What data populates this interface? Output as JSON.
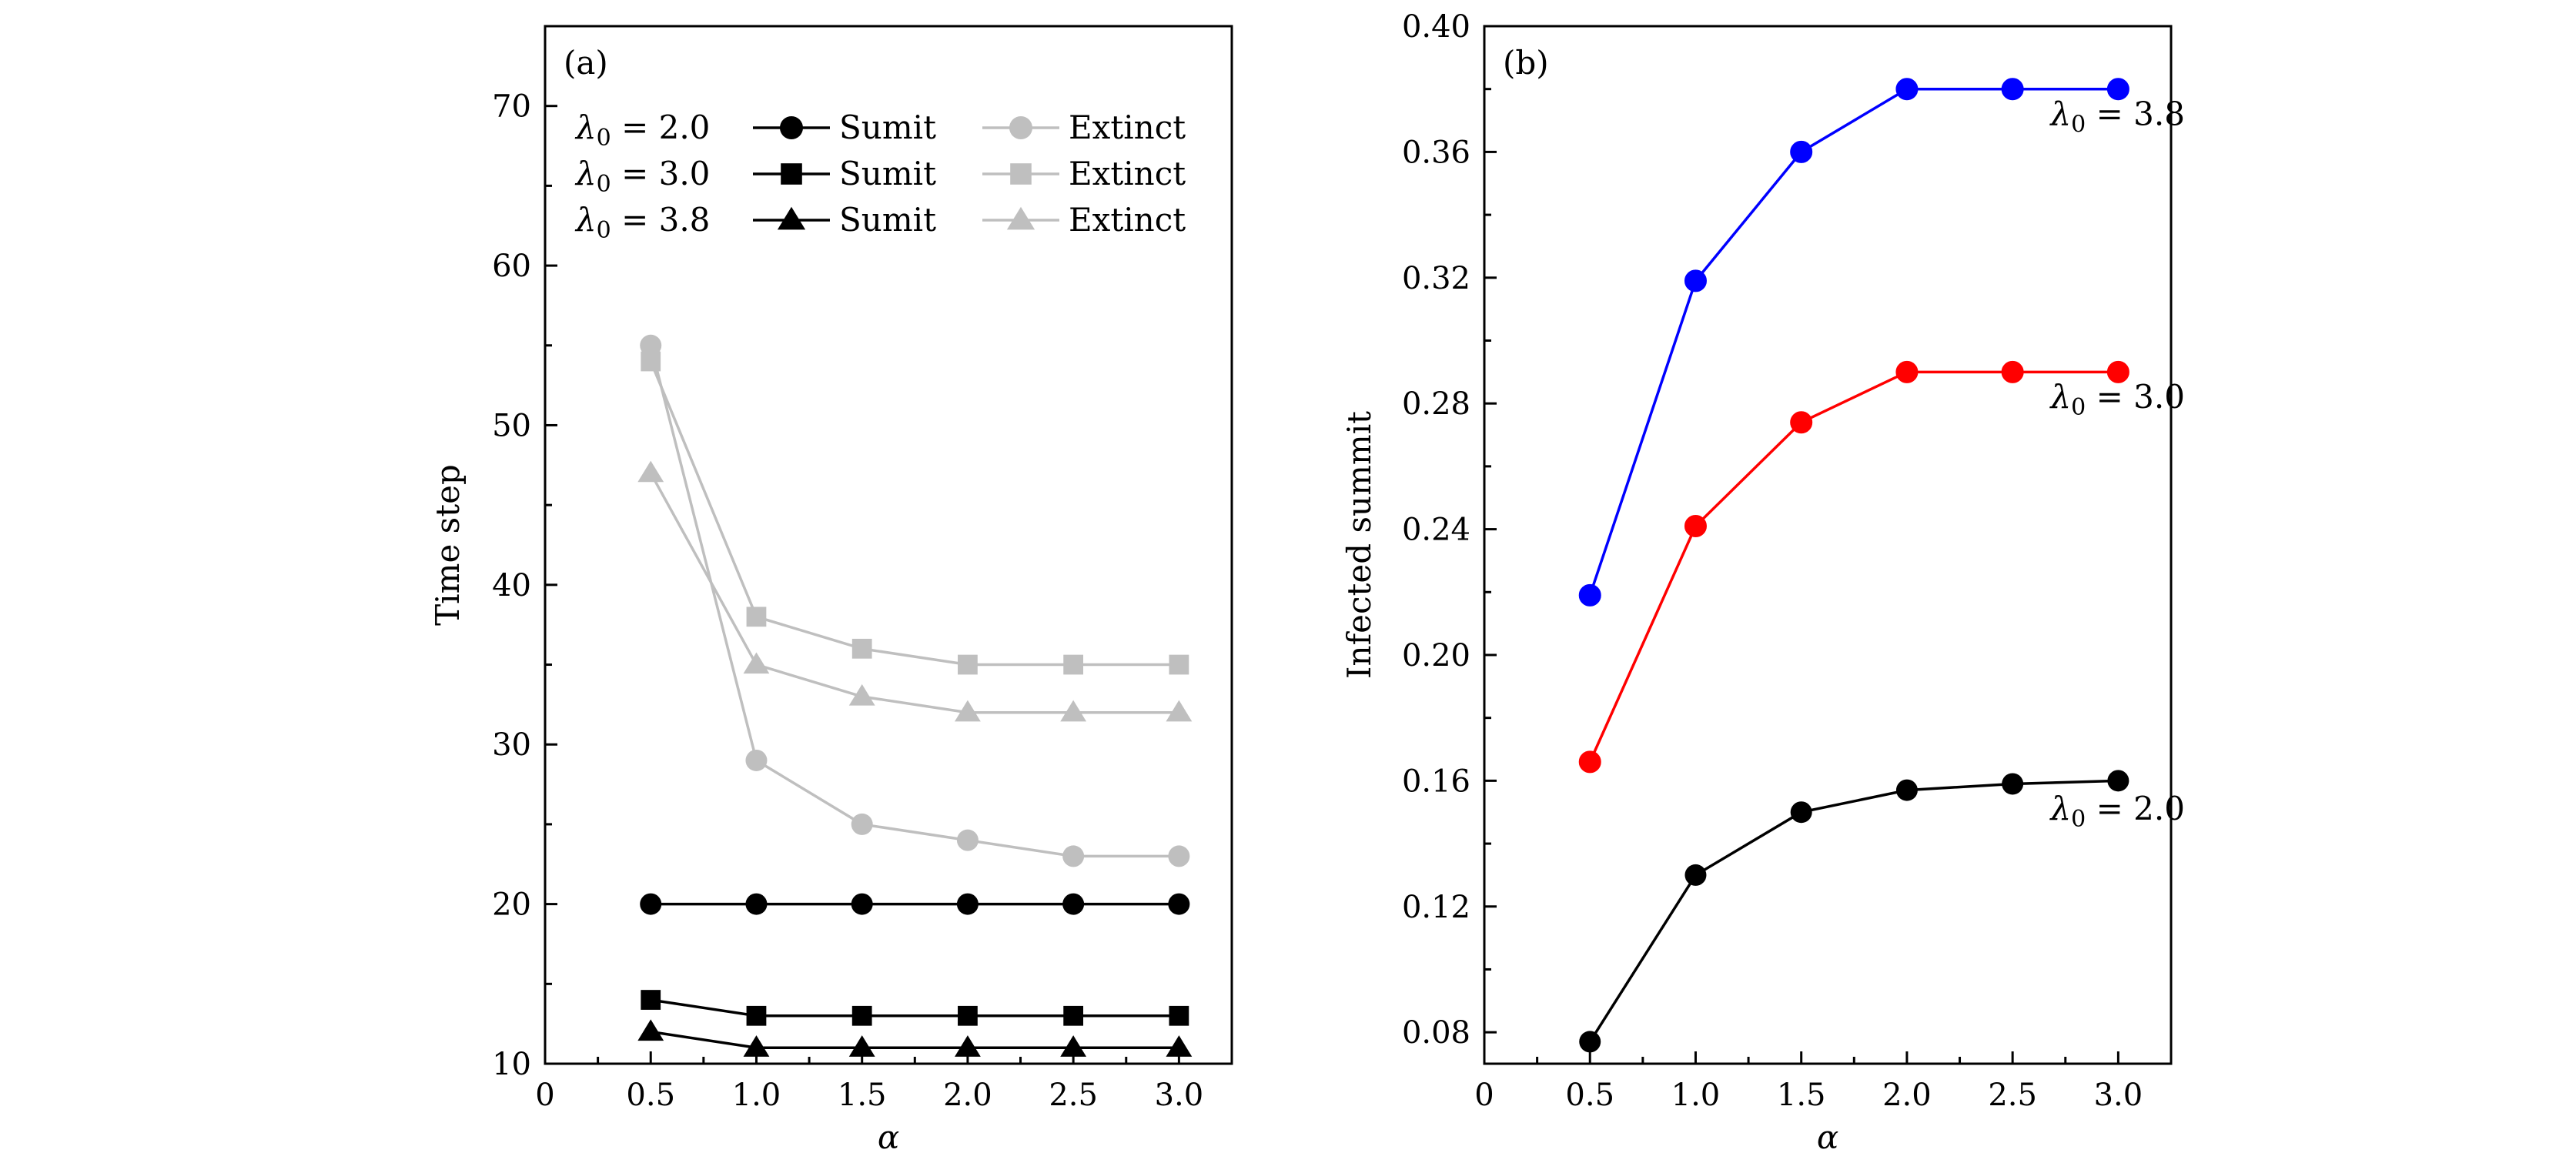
{
  "chart_data": [
    {
      "type": "line",
      "panel_label": "(a)",
      "xlabel": "α",
      "ylabel": "Time step",
      "xlim": [
        0,
        3.25
      ],
      "ylim": [
        10,
        75
      ],
      "xticks": [
        0,
        0.5,
        1.0,
        1.5,
        2.0,
        2.5,
        3.0
      ],
      "xtick_labels": [
        "0",
        "0.5",
        "1.0",
        "1.5",
        "2.0",
        "2.5",
        "3.0"
      ],
      "yticks": [
        10,
        20,
        30,
        40,
        50,
        60,
        70
      ],
      "ytick_labels": [
        "10",
        "20",
        "30",
        "40",
        "50",
        "60",
        "70"
      ],
      "x": [
        0.5,
        1.0,
        1.5,
        2.0,
        2.5,
        3.0
      ],
      "legend": {
        "placement": "top-left",
        "rows": [
          {
            "lambda_label": "λ₀ = 2.0",
            "summit_label": "Sumit",
            "extinct_label": "Extinct",
            "marker": "circle"
          },
          {
            "lambda_label": "λ₀ = 3.0",
            "summit_label": "Sumit",
            "extinct_label": "Extinct",
            "marker": "square"
          },
          {
            "lambda_label": "λ₀ = 3.8",
            "summit_label": "Sumit",
            "extinct_label": "Extinct",
            "marker": "triangle"
          }
        ]
      },
      "series": [
        {
          "name": "λ₀ = 2.0 Sumit",
          "marker": "circle",
          "color": "#000000",
          "values": [
            20,
            20,
            20,
            20,
            20,
            20
          ]
        },
        {
          "name": "λ₀ = 3.0 Sumit",
          "marker": "square",
          "color": "#000000",
          "values": [
            14,
            13,
            13,
            13,
            13,
            13
          ]
        },
        {
          "name": "λ₀ = 3.8 Sumit",
          "marker": "triangle",
          "color": "#000000",
          "values": [
            12,
            11,
            11,
            11,
            11,
            11
          ]
        },
        {
          "name": "λ₀ = 2.0 Extinct",
          "marker": "circle",
          "color": "#bfbfbf",
          "values": [
            55,
            29,
            25,
            24,
            23,
            23
          ]
        },
        {
          "name": "λ₀ = 3.0 Extinct",
          "marker": "square",
          "color": "#bfbfbf",
          "values": [
            54,
            38,
            36,
            35,
            35,
            35
          ]
        },
        {
          "name": "λ₀ = 3.8 Extinct",
          "marker": "triangle",
          "color": "#bfbfbf",
          "values": [
            47,
            35,
            33,
            32,
            32,
            32
          ]
        }
      ]
    },
    {
      "type": "line",
      "panel_label": "(b)",
      "xlabel": "α",
      "ylabel": "Infected summit",
      "xlim": [
        0,
        3.25
      ],
      "ylim": [
        0.07,
        0.4
      ],
      "xticks": [
        0,
        0.5,
        1.0,
        1.5,
        2.0,
        2.5,
        3.0
      ],
      "xtick_labels": [
        "0",
        "0.5",
        "1.0",
        "1.5",
        "2.0",
        "2.5",
        "3.0"
      ],
      "yticks": [
        0.08,
        0.12,
        0.16,
        0.2,
        0.24,
        0.28,
        0.32,
        0.36,
        0.4
      ],
      "ytick_labels": [
        "0.08",
        "0.12",
        "0.16",
        "0.20",
        "0.24",
        "0.28",
        "0.32",
        "0.36",
        "0.40"
      ],
      "x": [
        0.5,
        1.0,
        1.5,
        2.0,
        2.5,
        3.0
      ],
      "series": [
        {
          "name": "λ₀ = 3.8",
          "marker": "circle",
          "color": "#0000ff",
          "values": [
            0.219,
            0.319,
            0.36,
            0.38,
            0.38,
            0.38
          ]
        },
        {
          "name": "λ₀ = 3.0",
          "marker": "circle",
          "color": "#ff0000",
          "values": [
            0.166,
            0.241,
            0.274,
            0.29,
            0.29,
            0.29
          ]
        },
        {
          "name": "λ₀ = 2.0",
          "marker": "circle",
          "color": "#000000",
          "values": [
            0.077,
            0.13,
            0.15,
            0.157,
            0.159,
            0.16
          ]
        }
      ],
      "annotations": [
        {
          "text": "λ₀ = 3.8",
          "x": 2.68,
          "y": 0.372
        },
        {
          "text": "λ₀ = 3.0",
          "x": 2.68,
          "y": 0.282
        },
        {
          "text": "λ₀ = 2.0",
          "x": 2.68,
          "y": 0.151
        }
      ]
    }
  ]
}
